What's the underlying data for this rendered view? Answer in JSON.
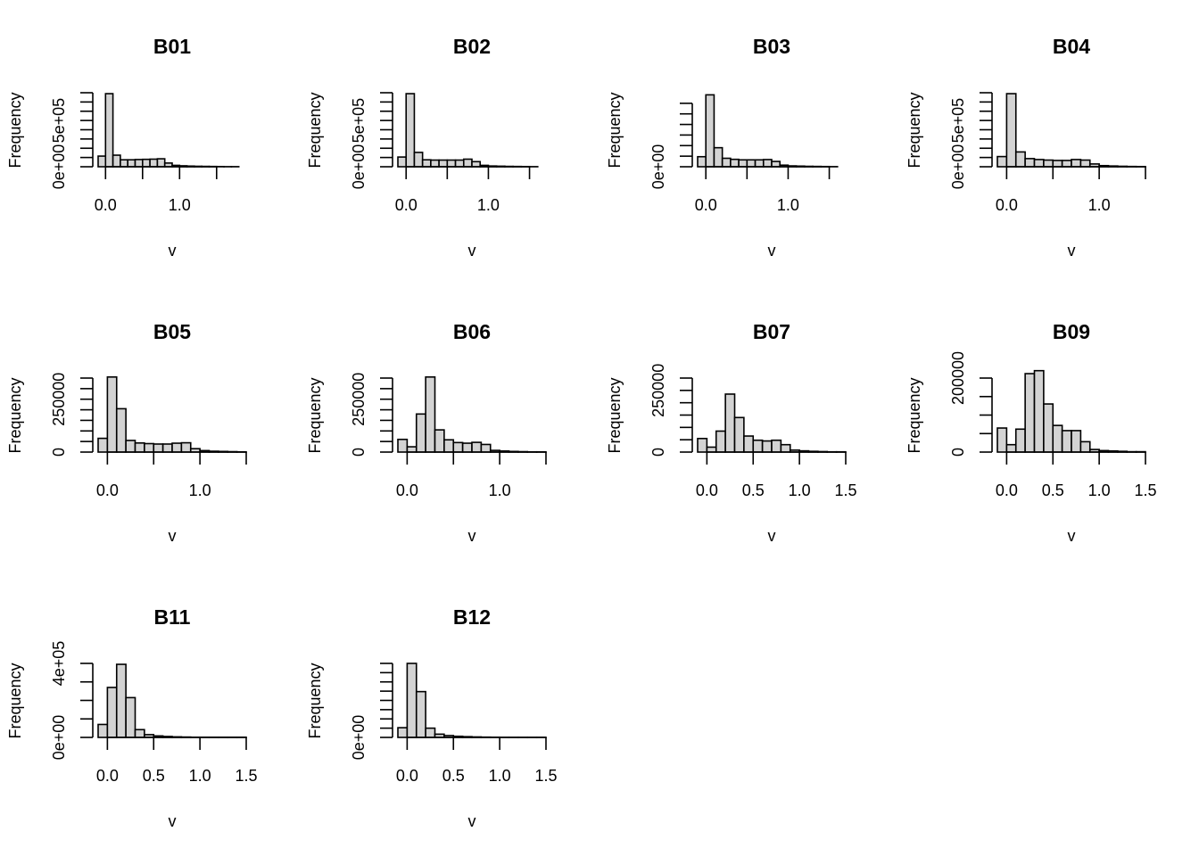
{
  "chart_data": [
    {
      "type": "bar",
      "title": "B01",
      "xlabel": "v",
      "ylabel": "Frequency",
      "xlim": [
        -0.1,
        1.9
      ],
      "x_ticks": [
        {
          "v": 0.0,
          "label": "0.0"
        },
        {
          "v": 0.5,
          "label": ""
        },
        {
          "v": 1.0,
          "label": "1.0"
        },
        {
          "v": 1.5,
          "label": ""
        }
      ],
      "ylim": [
        0,
        800000
      ],
      "y_ticks": [
        {
          "v": 0,
          "label": "0e+00"
        },
        {
          "v": 100000,
          "label": ""
        },
        {
          "v": 200000,
          "label": ""
        },
        {
          "v": 300000,
          "label": ""
        },
        {
          "v": 400000,
          "label": ""
        },
        {
          "v": 500000,
          "label": "5e+05"
        },
        {
          "v": 600000,
          "label": ""
        },
        {
          "v": 700000,
          "label": ""
        },
        {
          "v": 800000,
          "label": ""
        }
      ],
      "bin_start": -0.1,
      "bin_width": 0.1,
      "values": [
        115000,
        790000,
        125000,
        75000,
        75000,
        78000,
        80000,
        82000,
        86000,
        40000,
        15000,
        10000,
        7000,
        5000,
        4000,
        3000,
        2000,
        1000,
        1000
      ]
    },
    {
      "type": "bar",
      "title": "B02",
      "xlabel": "v",
      "ylabel": "Frequency",
      "xlim": [
        -0.1,
        1.7
      ],
      "x_ticks": [
        {
          "v": 0.0,
          "label": "0.0"
        },
        {
          "v": 0.5,
          "label": ""
        },
        {
          "v": 1.0,
          "label": "1.0"
        },
        {
          "v": 1.5,
          "label": ""
        }
      ],
      "ylim": [
        0,
        800000
      ],
      "y_ticks": [
        {
          "v": 0,
          "label": "0e+00"
        },
        {
          "v": 100000,
          "label": ""
        },
        {
          "v": 200000,
          "label": ""
        },
        {
          "v": 300000,
          "label": ""
        },
        {
          "v": 400000,
          "label": ""
        },
        {
          "v": 500000,
          "label": "5e+05"
        },
        {
          "v": 600000,
          "label": ""
        },
        {
          "v": 700000,
          "label": ""
        },
        {
          "v": 800000,
          "label": ""
        }
      ],
      "bin_start": -0.1,
      "bin_width": 0.1,
      "values": [
        105000,
        790000,
        155000,
        75000,
        72000,
        72000,
        72000,
        72000,
        82000,
        55000,
        15000,
        8000,
        6000,
        4000,
        3000,
        2000,
        1000
      ]
    },
    {
      "type": "bar",
      "title": "B03",
      "xlabel": "v",
      "ylabel": "Frequency",
      "xlim": [
        -0.1,
        1.7
      ],
      "x_ticks": [
        {
          "v": 0.0,
          "label": "0.0"
        },
        {
          "v": 0.5,
          "label": ""
        },
        {
          "v": 1.0,
          "label": "1.0"
        },
        {
          "v": 1.5,
          "label": ""
        }
      ],
      "ylim": [
        0,
        700000
      ],
      "y_ticks": [
        {
          "v": 0,
          "label": "0e+00"
        },
        {
          "v": 100000,
          "label": ""
        },
        {
          "v": 200000,
          "label": ""
        },
        {
          "v": 300000,
          "label": ""
        },
        {
          "v": 400000,
          "label": ""
        },
        {
          "v": 500000,
          "label": ""
        },
        {
          "v": 600000,
          "label": ""
        }
      ],
      "bin_start": -0.1,
      "bin_width": 0.1,
      "values": [
        95000,
        680000,
        180000,
        80000,
        70000,
        65000,
        65000,
        65000,
        68000,
        50000,
        15000,
        8000,
        6000,
        4000,
        3000,
        2000,
        1000
      ]
    },
    {
      "type": "bar",
      "title": "B04",
      "xlabel": "v",
      "ylabel": "Frequency",
      "xlim": [
        -0.1,
        1.5
      ],
      "x_ticks": [
        {
          "v": 0.0,
          "label": "0.0"
        },
        {
          "v": 0.5,
          "label": ""
        },
        {
          "v": 1.0,
          "label": "1.0"
        },
        {
          "v": 1.5,
          "label": ""
        }
      ],
      "ylim": [
        0,
        800000
      ],
      "y_ticks": [
        {
          "v": 0,
          "label": "0e+00"
        },
        {
          "v": 100000,
          "label": ""
        },
        {
          "v": 200000,
          "label": ""
        },
        {
          "v": 300000,
          "label": ""
        },
        {
          "v": 400000,
          "label": ""
        },
        {
          "v": 500000,
          "label": "5e+05"
        },
        {
          "v": 600000,
          "label": ""
        },
        {
          "v": 700000,
          "label": ""
        },
        {
          "v": 800000,
          "label": ""
        }
      ],
      "bin_start": -0.1,
      "bin_width": 0.1,
      "values": [
        110000,
        790000,
        160000,
        88000,
        78000,
        72000,
        68000,
        68000,
        78000,
        72000,
        30000,
        12000,
        8000,
        5000,
        3000,
        2000
      ]
    },
    {
      "type": "bar",
      "title": "B05",
      "xlabel": "v",
      "ylabel": "Frequency",
      "xlim": [
        -0.1,
        1.5
      ],
      "x_ticks": [
        {
          "v": 0.0,
          "label": "0.0"
        },
        {
          "v": 0.5,
          "label": ""
        },
        {
          "v": 1.0,
          "label": "1.0"
        },
        {
          "v": 1.5,
          "label": ""
        }
      ],
      "ylim": [
        0,
        350000
      ],
      "y_ticks": [
        {
          "v": 0,
          "label": "0"
        },
        {
          "v": 50000,
          "label": ""
        },
        {
          "v": 100000,
          "label": ""
        },
        {
          "v": 150000,
          "label": ""
        },
        {
          "v": 200000,
          "label": ""
        },
        {
          "v": 250000,
          "label": "250000"
        },
        {
          "v": 300000,
          "label": ""
        },
        {
          "v": 350000,
          "label": ""
        }
      ],
      "bin_start": -0.1,
      "bin_width": 0.1,
      "values": [
        65000,
        355000,
        205000,
        55000,
        43000,
        40000,
        38000,
        38000,
        42000,
        44000,
        16000,
        7000,
        4000,
        3000,
        2000,
        1000
      ]
    },
    {
      "type": "bar",
      "title": "B06",
      "xlabel": "v",
      "ylabel": "Frequency",
      "xlim": [
        -0.1,
        1.5
      ],
      "x_ticks": [
        {
          "v": 0.0,
          "label": "0.0"
        },
        {
          "v": 0.5,
          "label": ""
        },
        {
          "v": 1.0,
          "label": "1.0"
        },
        {
          "v": 1.5,
          "label": ""
        }
      ],
      "ylim": [
        0,
        350000
      ],
      "y_ticks": [
        {
          "v": 0,
          "label": "0"
        },
        {
          "v": 50000,
          "label": ""
        },
        {
          "v": 100000,
          "label": ""
        },
        {
          "v": 150000,
          "label": ""
        },
        {
          "v": 200000,
          "label": ""
        },
        {
          "v": 250000,
          "label": "250000"
        },
        {
          "v": 300000,
          "label": ""
        },
        {
          "v": 350000,
          "label": ""
        }
      ],
      "bin_start": -0.1,
      "bin_width": 0.1,
      "values": [
        60000,
        25000,
        180000,
        355000,
        105000,
        58000,
        45000,
        42000,
        46000,
        36000,
        8000,
        5000,
        3000,
        2000,
        1000,
        1000
      ]
    },
    {
      "type": "bar",
      "title": "B07",
      "xlabel": "v",
      "ylabel": "Frequency",
      "xlim": [
        -0.1,
        1.5
      ],
      "x_ticks": [
        {
          "v": 0.0,
          "label": "0.0"
        },
        {
          "v": 0.5,
          "label": "0.5"
        },
        {
          "v": 1.0,
          "label": "1.0"
        },
        {
          "v": 1.5,
          "label": "1.5"
        }
      ],
      "ylim": [
        0,
        300000
      ],
      "y_ticks": [
        {
          "v": 0,
          "label": "0"
        },
        {
          "v": 50000,
          "label": ""
        },
        {
          "v": 100000,
          "label": ""
        },
        {
          "v": 150000,
          "label": ""
        },
        {
          "v": 200000,
          "label": ""
        },
        {
          "v": 250000,
          "label": "250000"
        },
        {
          "v": 300000,
          "label": ""
        }
      ],
      "bin_start": -0.1,
      "bin_width": 0.1,
      "values": [
        55000,
        20000,
        85000,
        235000,
        140000,
        65000,
        48000,
        45000,
        48000,
        30000,
        8000,
        5000,
        3000,
        2000,
        1000,
        1000
      ]
    },
    {
      "type": "bar",
      "title": "B09",
      "xlabel": "v",
      "ylabel": "Frequency",
      "xlim": [
        -0.1,
        1.5
      ],
      "x_ticks": [
        {
          "v": 0.0,
          "label": "0.0"
        },
        {
          "v": 0.5,
          "label": "0.5"
        },
        {
          "v": 1.0,
          "label": "1.0"
        },
        {
          "v": 1.5,
          "label": "1.5"
        }
      ],
      "ylim": [
        0,
        200000
      ],
      "y_ticks": [
        {
          "v": 0,
          "label": "0"
        },
        {
          "v": 50000,
          "label": ""
        },
        {
          "v": 100000,
          "label": ""
        },
        {
          "v": 150000,
          "label": ""
        },
        {
          "v": 200000,
          "label": "200000"
        }
      ],
      "bin_start": -0.1,
      "bin_width": 0.1,
      "values": [
        65000,
        20000,
        62000,
        212000,
        220000,
        130000,
        72000,
        58000,
        58000,
        28000,
        7000,
        4000,
        3000,
        2000,
        1000,
        1000
      ]
    },
    {
      "type": "bar",
      "title": "B11",
      "xlabel": "v",
      "ylabel": "Frequency",
      "xlim": [
        -0.1,
        1.5
      ],
      "x_ticks": [
        {
          "v": 0.0,
          "label": "0.0"
        },
        {
          "v": 0.5,
          "label": "0.5"
        },
        {
          "v": 1.0,
          "label": "1.0"
        },
        {
          "v": 1.5,
          "label": "1.5"
        }
      ],
      "ylim": [
        0,
        400000
      ],
      "y_ticks": [
        {
          "v": 0,
          "label": "0e+00"
        },
        {
          "v": 100000,
          "label": ""
        },
        {
          "v": 200000,
          "label": ""
        },
        {
          "v": 300000,
          "label": ""
        },
        {
          "v": 400000,
          "label": "4e+05"
        }
      ],
      "bin_start": -0.1,
      "bin_width": 0.1,
      "values": [
        70000,
        270000,
        395000,
        215000,
        42000,
        15000,
        8000,
        5000,
        3000,
        2000,
        1000,
        1000,
        1000,
        1000,
        1000,
        1000
      ]
    },
    {
      "type": "bar",
      "title": "B12",
      "xlabel": "v",
      "ylabel": "Frequency",
      "xlim": [
        -0.1,
        1.5
      ],
      "x_ticks": [
        {
          "v": 0.0,
          "label": "0.0"
        },
        {
          "v": 0.5,
          "label": "0.5"
        },
        {
          "v": 1.0,
          "label": "1.0"
        },
        {
          "v": 1.5,
          "label": "1.5"
        }
      ],
      "ylim": [
        0,
        800000
      ],
      "y_ticks": [
        {
          "v": 0,
          "label": "0e+00"
        },
        {
          "v": 100000,
          "label": ""
        },
        {
          "v": 200000,
          "label": ""
        },
        {
          "v": 300000,
          "label": ""
        },
        {
          "v": 400000,
          "label": ""
        },
        {
          "v": 500000,
          "label": ""
        },
        {
          "v": 600000,
          "label": ""
        },
        {
          "v": 700000,
          "label": ""
        },
        {
          "v": 800000,
          "label": ""
        }
      ],
      "bin_start": -0.1,
      "bin_width": 0.1,
      "values": [
        105000,
        800000,
        495000,
        100000,
        35000,
        20000,
        12000,
        8000,
        5000,
        3000,
        2000,
        1000,
        1000,
        1000,
        1000,
        1000
      ]
    }
  ]
}
